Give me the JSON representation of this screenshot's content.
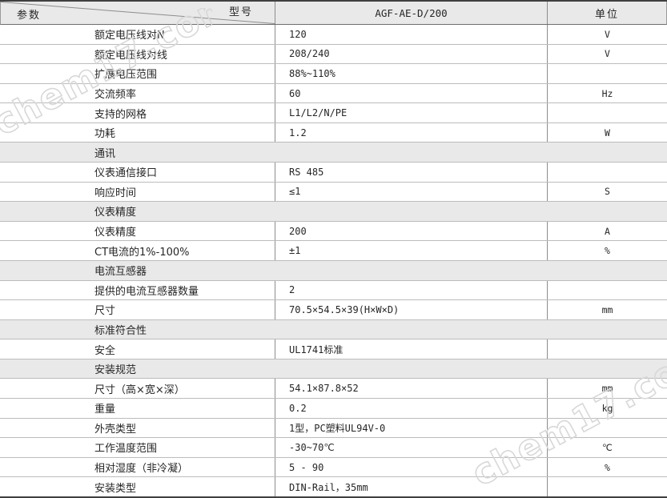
{
  "watermark": {
    "text": "chem17.com",
    "color": "#d8d8d8"
  },
  "table": {
    "header": {
      "param_label": "参数",
      "model_label": "型号",
      "model_value": "AGF-AE-D/200",
      "unit_label": "单位"
    },
    "rows": [
      {
        "type": "data",
        "param": "额定电压线对N",
        "value": "120",
        "unit": "V"
      },
      {
        "type": "data",
        "param": "额定电压线对线",
        "value": "208/240",
        "unit": "V"
      },
      {
        "type": "data",
        "param": "扩展电压范围",
        "value": "88%~110%",
        "unit": ""
      },
      {
        "type": "data",
        "param": "交流频率",
        "value": "60",
        "unit": "Hz"
      },
      {
        "type": "data",
        "param": "支持的网格",
        "value": "L1/L2/N/PE",
        "unit": ""
      },
      {
        "type": "data",
        "param": "功耗",
        "value": "1.2",
        "unit": "W"
      },
      {
        "type": "section",
        "param": "通讯"
      },
      {
        "type": "data",
        "param": "仪表通信接口",
        "value": "RS 485",
        "unit": ""
      },
      {
        "type": "data",
        "param": "响应时间",
        "value": "≤1",
        "unit": "S"
      },
      {
        "type": "section",
        "param": "仪表精度"
      },
      {
        "type": "data",
        "param": "仪表精度",
        "value": "200",
        "unit": "A"
      },
      {
        "type": "data",
        "param": "CT电流的1%-100%",
        "value": "±1",
        "unit": "%"
      },
      {
        "type": "section",
        "param": "电流互感器"
      },
      {
        "type": "data",
        "param": "提供的电流互感器数量",
        "value": "2",
        "unit": ""
      },
      {
        "type": "data",
        "param": "尺寸",
        "value": "70.5×54.5×39(H×W×D)",
        "unit": "mm"
      },
      {
        "type": "section",
        "param": "标准符合性"
      },
      {
        "type": "data",
        "param": "安全",
        "value": "UL1741标准",
        "unit": ""
      },
      {
        "type": "section",
        "param": "安装规范"
      },
      {
        "type": "data",
        "param": "尺寸（高×宽×深）",
        "value": "54.1×87.8×52",
        "unit": "mm"
      },
      {
        "type": "data",
        "param": "重量",
        "value": "0.2",
        "unit": "kg"
      },
      {
        "type": "data",
        "param": "外壳类型",
        "value": "1型，PC塑料UL94V-0",
        "unit": ""
      },
      {
        "type": "data",
        "param": "工作温度范围",
        "value": "-30~70℃",
        "unit": "℃"
      },
      {
        "type": "data",
        "param": "相对湿度（非冷凝）",
        "value": "5 - 90",
        "unit": "%"
      },
      {
        "type": "data",
        "param": "安装类型",
        "value": "DIN-Rail，35mm",
        "unit": ""
      }
    ]
  }
}
